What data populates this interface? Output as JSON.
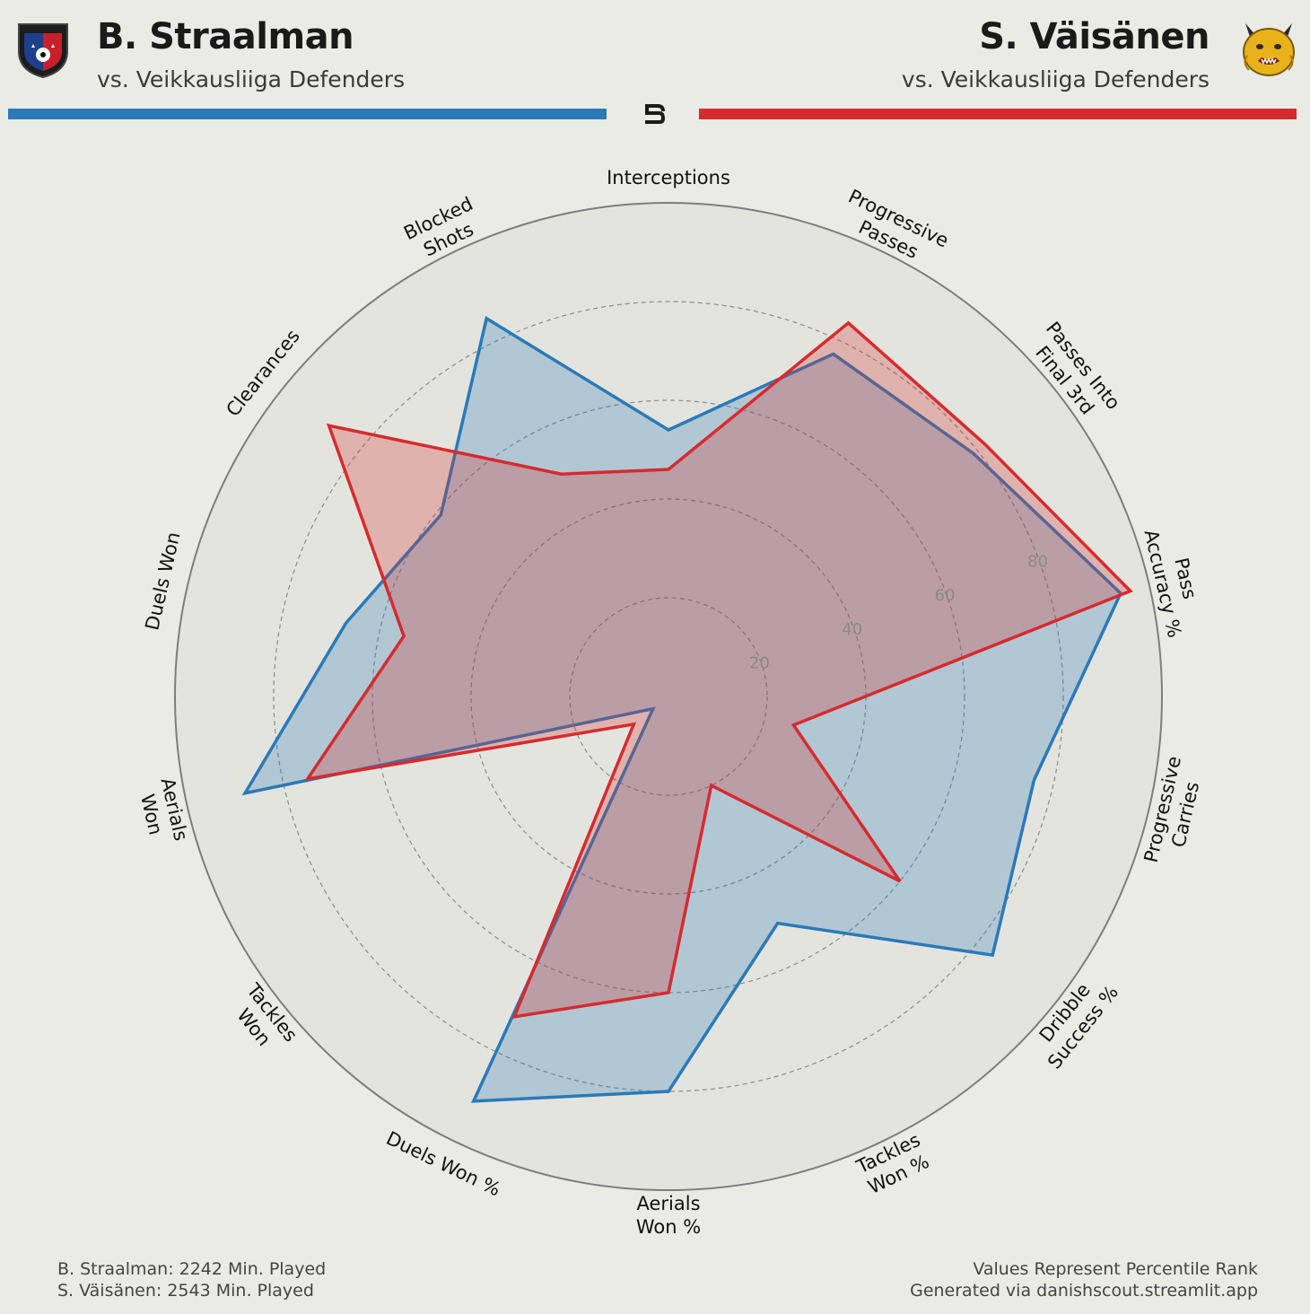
{
  "header": {
    "left_player": "B. Straalman",
    "left_subtitle": "vs. Veikkausliiga Defenders",
    "right_player": "S. Väisänen",
    "right_subtitle": "vs. Veikkausliiga Defenders",
    "left_badge_icon": "fc-inter-turku-crest",
    "right_badge_icon": "ilves-lynx-crest",
    "center_logo_icon": "danishscout-logo",
    "left_color": "#2a7ab8",
    "right_color": "#d62b2e"
  },
  "footer": {
    "left_line1": "B. Straalman: 2242 Min. Played",
    "left_line2": "S. Väisänen: 2543 Min. Played",
    "right_line1": "Values Represent Percentile Rank",
    "right_line2": "Generated via danishscout.streamlit.app"
  },
  "chart_data": {
    "type": "radar",
    "scale": "percentile",
    "rlim": [
      0,
      100
    ],
    "radial_ticks": [
      20,
      40,
      60,
      80
    ],
    "grid": true,
    "axes": [
      [
        "Interceptions"
      ],
      [
        "Progressive",
        "Passes"
      ],
      [
        "Passes Into",
        "Final 3rd"
      ],
      [
        "Pass",
        "Accuracy %"
      ],
      [
        "Progressive",
        "Carries"
      ],
      [
        "Dribble",
        "Success %"
      ],
      [
        "Tackles",
        "Won %"
      ],
      [
        "Aerials",
        "Won %"
      ],
      [
        "Duels Won %"
      ],
      [
        "Tackles",
        "Won"
      ],
      [
        "Aerials",
        "Won"
      ],
      [
        "Duels Won"
      ],
      [
        "Clearances"
      ],
      [
        "Blocked",
        "Shots"
      ]
    ],
    "series": [
      {
        "name": "B. Straalman",
        "color": "#2a7ab8",
        "fill": "rgba(42,122,184,0.27)",
        "values": [
          54,
          77,
          79,
          94,
          76,
          84,
          51,
          80,
          91,
          4,
          88,
          67,
          59,
          85
        ]
      },
      {
        "name": "S. Väisänen",
        "color": "#d62b2e",
        "fill": "rgba(214,43,46,0.27)",
        "values": [
          46,
          84,
          82,
          96,
          26,
          60,
          20,
          60,
          72,
          9,
          75,
          55,
          88,
          50
        ]
      }
    ]
  }
}
